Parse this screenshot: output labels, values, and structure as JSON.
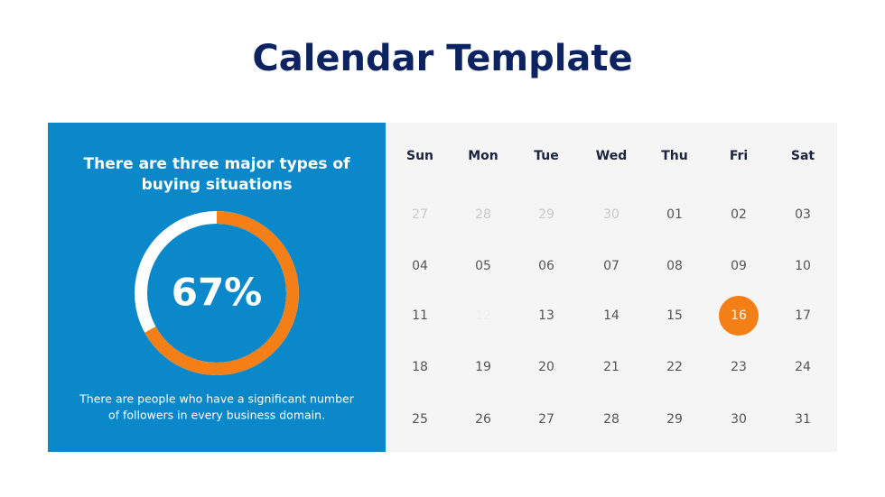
{
  "title": "Calendar Template",
  "panel": {
    "heading": [
      "There are three major types of",
      "buying situations"
    ],
    "percent": {
      "value": 67,
      "label": "67%"
    },
    "description": [
      "There are people who have a significant number",
      "of followers in every business domain."
    ]
  },
  "calendar": {
    "weekdays": [
      "Sun",
      "Mon",
      "Tue",
      "Wed",
      "Thu",
      "Fri",
      "Sat"
    ],
    "weeks": [
      [
        "27",
        "28",
        "29",
        "30",
        "01",
        "02",
        "03"
      ],
      [
        "04",
        "05",
        "06",
        "07",
        "08",
        "09",
        "10"
      ],
      [
        "11",
        "12",
        "13",
        "14",
        "15",
        "16",
        "17"
      ],
      [
        "18",
        "19",
        "20",
        "21",
        "22",
        "23",
        "24"
      ],
      [
        "25",
        "26",
        "27",
        "28",
        "29",
        "30",
        "31"
      ]
    ]
  }
}
